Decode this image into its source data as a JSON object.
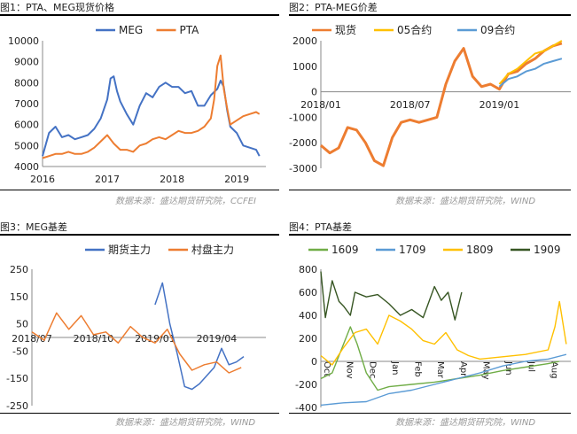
{
  "panels": [
    {
      "title": "图1：PTA、MEG现货价格",
      "source": "数据来源：盛达期货研究院，CCFEI"
    },
    {
      "title": "图2：PTA-MEG价差",
      "source": "数据来源：盛达期货研究院，WIND"
    },
    {
      "title": "图3：MEG基差",
      "source": "数据来源：盛达期货研究院，WIND"
    },
    {
      "title": "图4：PTA基差",
      "source": "数据来源：盛达期货研究院，WIND"
    }
  ],
  "chart_data": [
    {
      "type": "line",
      "ylim": [
        4000,
        10000
      ],
      "y_ticks": [
        "4000",
        "5000",
        "6000",
        "7000",
        "8000",
        "9000",
        "10000"
      ],
      "x_ticks": [
        "2016",
        "2017",
        "2018",
        "2019"
      ],
      "legend_position": "top",
      "series": [
        {
          "name": "MEG",
          "color": "#4472C4",
          "x": [
            2016.0,
            2016.1,
            2016.2,
            2016.3,
            2016.4,
            2016.5,
            2016.6,
            2016.7,
            2016.8,
            2016.9,
            2017.0,
            2017.05,
            2017.1,
            2017.15,
            2017.2,
            2017.3,
            2017.4,
            2017.5,
            2017.6,
            2017.7,
            2017.8,
            2017.9,
            2018.0,
            2018.1,
            2018.2,
            2018.3,
            2018.4,
            2018.5,
            2018.6,
            2018.7,
            2018.75,
            2018.8,
            2018.85,
            2018.9,
            2019.0,
            2019.1,
            2019.2,
            2019.3,
            2019.35
          ],
          "y": [
            4500,
            5600,
            5900,
            5400,
            5500,
            5300,
            5400,
            5500,
            5800,
            6300,
            7200,
            8200,
            8300,
            7600,
            7100,
            6500,
            6000,
            6900,
            7500,
            7300,
            7800,
            8000,
            7800,
            7800,
            7500,
            7600,
            6900,
            6900,
            7400,
            7700,
            8100,
            7800,
            6700,
            5900,
            5600,
            5000,
            4900,
            4800,
            4500
          ]
        },
        {
          "name": "PTA",
          "color": "#ED7D31",
          "x": [
            2016.0,
            2016.1,
            2016.2,
            2016.3,
            2016.4,
            2016.5,
            2016.6,
            2016.7,
            2016.8,
            2016.9,
            2017.0,
            2017.1,
            2017.2,
            2017.3,
            2017.4,
            2017.5,
            2017.6,
            2017.7,
            2017.8,
            2017.9,
            2018.0,
            2018.1,
            2018.2,
            2018.3,
            2018.4,
            2018.5,
            2018.6,
            2018.65,
            2018.7,
            2018.75,
            2018.8,
            2018.85,
            2018.9,
            2019.0,
            2019.1,
            2019.2,
            2019.3,
            2019.35
          ],
          "y": [
            4400,
            4500,
            4600,
            4600,
            4700,
            4600,
            4600,
            4700,
            4900,
            5200,
            5500,
            5100,
            4800,
            4800,
            4700,
            5000,
            5100,
            5300,
            5400,
            5300,
            5500,
            5700,
            5600,
            5600,
            5700,
            5900,
            6300,
            7200,
            8800,
            9300,
            7700,
            6800,
            6000,
            6200,
            6400,
            6500,
            6600,
            6500
          ]
        }
      ]
    },
    {
      "type": "line",
      "ylim": [
        -3000,
        2000
      ],
      "y_ticks": [
        "-3000",
        "-2000",
        "-1000",
        "0",
        "1000",
        "2000"
      ],
      "x_ticks": [
        "2018/01",
        "2018/07",
        "2019/01"
      ],
      "legend_position": "top",
      "series": [
        {
          "name": "现货",
          "color": "#ED7D31",
          "x": [
            2018.0,
            2018.05,
            2018.1,
            2018.15,
            2018.2,
            2018.25,
            2018.3,
            2018.35,
            2018.4,
            2018.45,
            2018.5,
            2018.55,
            2018.6,
            2018.65,
            2018.7,
            2018.75,
            2018.8,
            2018.85,
            2018.9,
            2018.95,
            2019.0,
            2019.05,
            2019.1,
            2019.15,
            2019.2,
            2019.25,
            2019.3,
            2019.35
          ],
          "y": [
            -2100,
            -2400,
            -2200,
            -1400,
            -1500,
            -2000,
            -2700,
            -2900,
            -1800,
            -1200,
            -1100,
            -1200,
            -1100,
            -1000,
            300,
            1200,
            1700,
            600,
            200,
            300,
            100,
            700,
            800,
            1100,
            1300,
            1600,
            1800,
            1900
          ]
        },
        {
          "name": "05合约",
          "color": "#FFC000",
          "x": [
            2019.0,
            2019.05,
            2019.1,
            2019.15,
            2019.2,
            2019.25,
            2019.3,
            2019.35
          ],
          "y": [
            300,
            700,
            900,
            1200,
            1500,
            1600,
            1800,
            2000
          ]
        },
        {
          "name": "09合约",
          "color": "#5B9BD5",
          "x": [
            2019.0,
            2019.05,
            2019.1,
            2019.15,
            2019.2,
            2019.25,
            2019.3,
            2019.35
          ],
          "y": [
            200,
            500,
            600,
            800,
            900,
            1100,
            1200,
            1300
          ]
        }
      ]
    },
    {
      "type": "line",
      "ylim": [
        -250,
        250
      ],
      "y_ticks": [
        "-250",
        "-150",
        "-50",
        "50",
        "150",
        "250"
      ],
      "x_ticks": [
        "2018/07",
        "2018/10",
        "2019/01",
        "2019/04"
      ],
      "legend_position": "top",
      "series": [
        {
          "name": "期货主力",
          "color": "#4472C4",
          "x": [
            2019.0,
            2019.03,
            2019.06,
            2019.09,
            2019.12,
            2019.15,
            2019.18,
            2019.21,
            2019.24,
            2019.27,
            2019.3,
            2019.33,
            2019.36
          ],
          "y": [
            120,
            200,
            50,
            -60,
            -180,
            -190,
            -170,
            -140,
            -110,
            -40,
            -100,
            -90,
            -70
          ]
        },
        {
          "name": "村盘主力",
          "color": "#ED7D31",
          "x": [
            2018.5,
            2018.55,
            2018.6,
            2018.65,
            2018.7,
            2018.75,
            2018.8,
            2018.85,
            2018.9,
            2018.95,
            2019.0,
            2019.05,
            2019.1,
            2019.15,
            2019.2,
            2019.25,
            2019.3,
            2019.35
          ],
          "y": [
            20,
            -10,
            90,
            30,
            80,
            10,
            20,
            -20,
            40,
            0,
            -20,
            30,
            -60,
            -120,
            -100,
            -90,
            -130,
            -110
          ]
        }
      ]
    },
    {
      "type": "line",
      "ylim": [
        -400,
        800
      ],
      "y_ticks": [
        "-400",
        "-200",
        "0",
        "200",
        "400",
        "600",
        "800"
      ],
      "x_ticks": [
        "Oct",
        "Nov",
        "Dec",
        "Jan",
        "Feb",
        "Mar",
        "Apr",
        "May",
        "Jun",
        "Jul",
        "Aug"
      ],
      "legend_position": "top",
      "series": [
        {
          "name": "1609",
          "color": "#70AD47",
          "x": [
            0,
            0.5,
            1,
            1.3,
            1.6,
            2,
            2.5,
            3,
            4,
            5,
            6,
            7,
            8,
            9,
            10,
            10.5
          ],
          "y": [
            -150,
            -100,
            150,
            300,
            150,
            -100,
            -250,
            -220,
            -200,
            -180,
            -150,
            -120,
            -80,
            -50,
            -20,
            0
          ]
        },
        {
          "name": "1709",
          "color": "#5B9BD5",
          "x": [
            0,
            1,
            2,
            3,
            4,
            5,
            6,
            7,
            8,
            9,
            10,
            10.8
          ],
          "y": [
            -380,
            -360,
            -350,
            -280,
            -250,
            -200,
            -150,
            -100,
            -40,
            0,
            20,
            60
          ]
        },
        {
          "name": "1809",
          "color": "#FFC000",
          "x": [
            0,
            0.5,
            1,
            1.5,
            2,
            2.5,
            3,
            3.5,
            4,
            4.5,
            5,
            5.5,
            6,
            6.5,
            7,
            8,
            9,
            10,
            10.3,
            10.5,
            10.8
          ],
          "y": [
            50,
            -30,
            120,
            250,
            280,
            150,
            400,
            350,
            280,
            180,
            150,
            250,
            100,
            50,
            20,
            40,
            60,
            100,
            300,
            520,
            150
          ]
        },
        {
          "name": "1909",
          "color": "#375623",
          "x": [
            0,
            0.2,
            0.5,
            0.8,
            1,
            1.3,
            1.5,
            2,
            2.5,
            3,
            3.5,
            4,
            4.5,
            5,
            5.3,
            5.6,
            5.9,
            6.2
          ],
          "y": [
            780,
            380,
            700,
            520,
            480,
            400,
            600,
            560,
            580,
            500,
            400,
            450,
            380,
            650,
            530,
            600,
            360,
            600
          ]
        }
      ]
    }
  ]
}
